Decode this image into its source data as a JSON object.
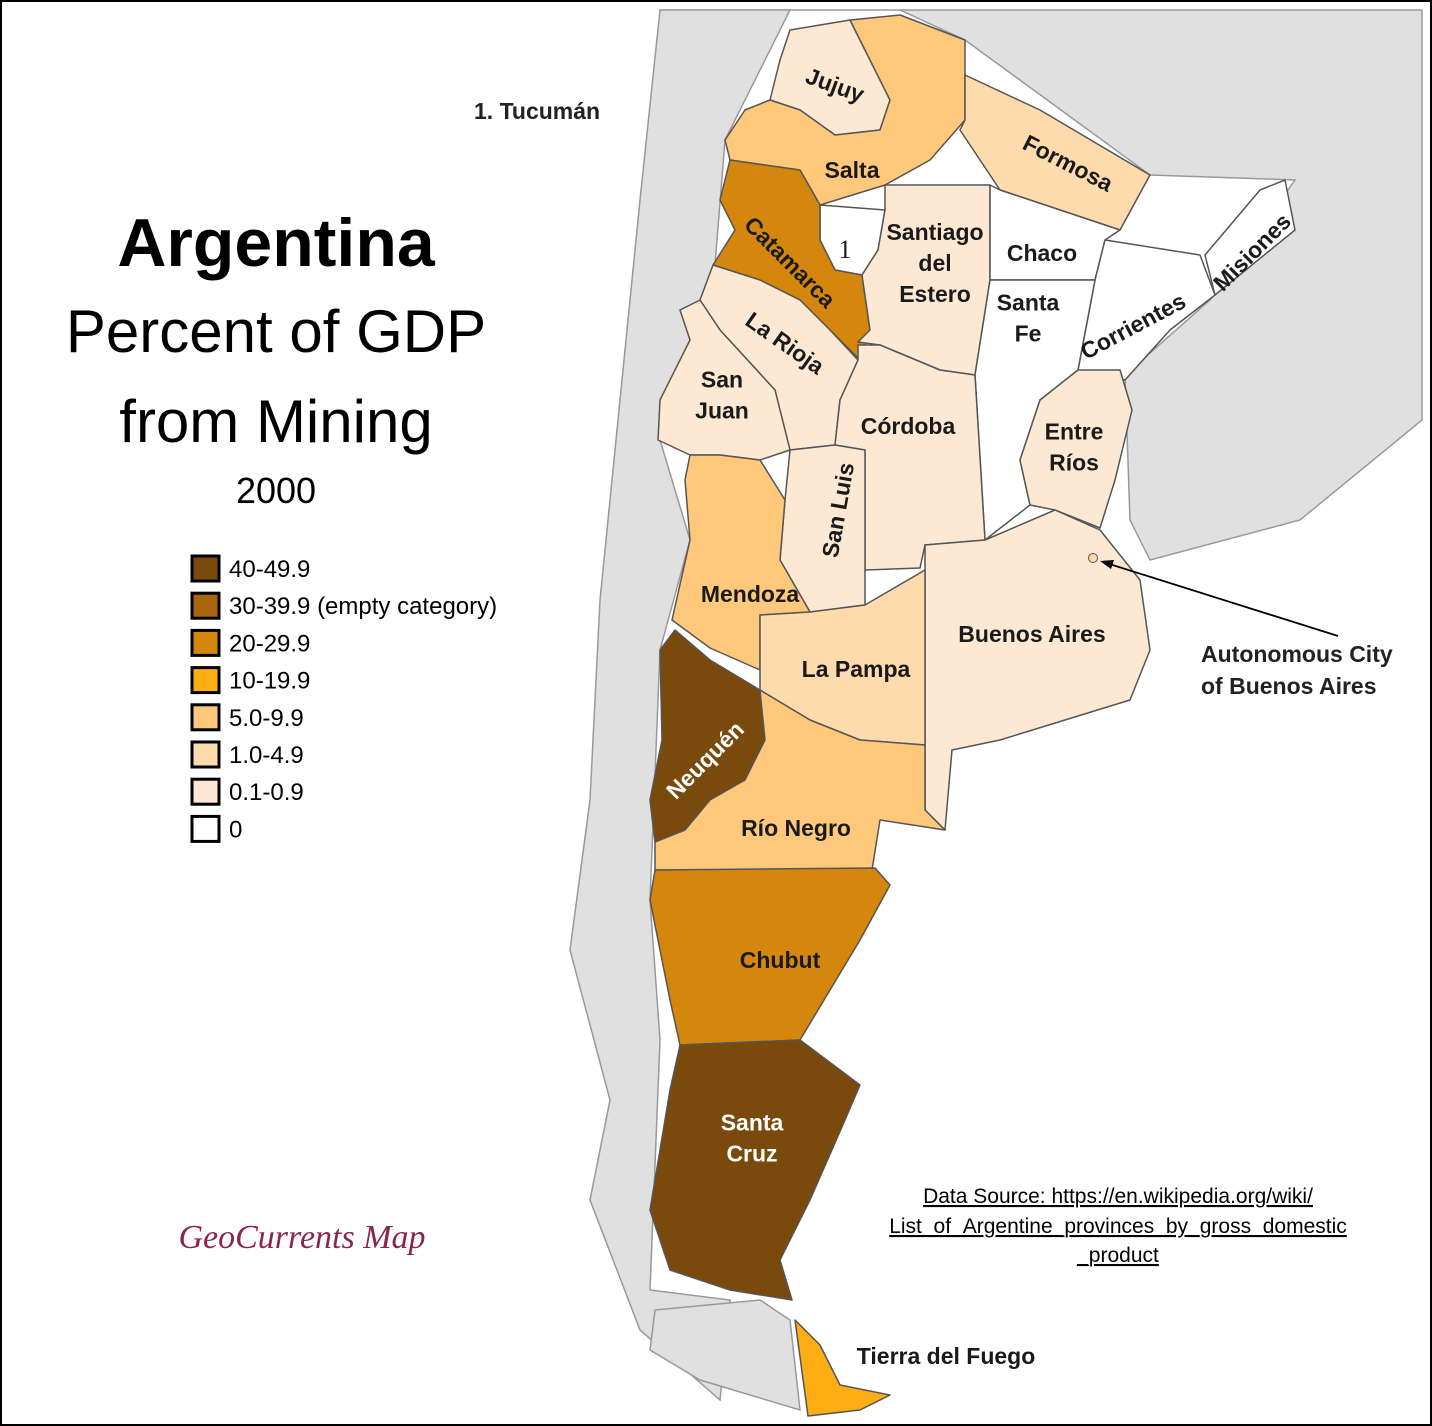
{
  "title": "Argentina",
  "subtitle": [
    "Percent of GDP",
    "from Mining"
  ],
  "year": "2000",
  "legend": [
    {
      "label": "40-49.9",
      "color": "#7a4a0c"
    },
    {
      "label": "30-39.9 (empty category)",
      "color": "#a8650e"
    },
    {
      "label": "20-29.9",
      "color": "#d4870c"
    },
    {
      "label": "10-19.9",
      "color": "#ffad14"
    },
    {
      "label": "5.0-9.9",
      "color": "#ffc87a"
    },
    {
      "label": "1.0-4.9",
      "color": "#fedbad"
    },
    {
      "label": "0.1-0.9",
      "color": "#fde9d3"
    },
    {
      "label": "0",
      "color": "#ffffff"
    }
  ],
  "footnote": "1. Tucumán",
  "provinces": [
    {
      "label": [
        "Jujuy"
      ],
      "color": "#fde9d3"
    },
    {
      "label": [
        "Salta"
      ],
      "color": "#ffc87a"
    },
    {
      "label": [
        "Formosa"
      ],
      "color": "#fedbad"
    },
    {
      "label": [
        "1"
      ],
      "color": "#ffffff"
    },
    {
      "label": [
        "Catamarca"
      ],
      "color": "#d4870c"
    },
    {
      "label": [
        "Santiago",
        "del",
        "Estero"
      ],
      "color": "#fde9d3"
    },
    {
      "label": [
        "Chaco"
      ],
      "color": "#ffffff"
    },
    {
      "label": [
        "Misiones"
      ],
      "color": "#ffffff"
    },
    {
      "label": [
        "Corrientes"
      ],
      "color": "#ffffff"
    },
    {
      "label": [
        "Santa",
        "Fe"
      ],
      "color": "#ffffff"
    },
    {
      "label": [
        "Entre",
        "Ríos"
      ],
      "color": "#fde9d3"
    },
    {
      "label": [
        "La Rioja"
      ],
      "color": "#fde9d3"
    },
    {
      "label": [
        "San",
        "Juan"
      ],
      "color": "#fde9d3"
    },
    {
      "label": [
        "Córdoba"
      ],
      "color": "#fde9d3"
    },
    {
      "label": [
        "San Luis"
      ],
      "color": "#fde9d3"
    },
    {
      "label": [
        "Mendoza"
      ],
      "color": "#ffc87a"
    },
    {
      "label": [
        "Buenos Aires"
      ],
      "color": "#fde9d3"
    },
    {
      "label": [
        "La Pampa"
      ],
      "color": "#fedbad"
    },
    {
      "label": [
        "Neuquén"
      ],
      "color": "#7a4a0c"
    },
    {
      "label": [
        "Río Negro"
      ],
      "color": "#ffc87a"
    },
    {
      "label": [
        "Chubut"
      ],
      "color": "#d4870c"
    },
    {
      "label": [
        "Santa",
        "Cruz"
      ],
      "color": "#7a4a0c"
    },
    {
      "label": [
        "Tierra del Fuego"
      ],
      "color": "#ffad14"
    }
  ],
  "annotation": [
    "Autonomous City",
    "of Buenos Aires"
  ],
  "source": [
    "Data Source: https://en.wikipedia.org/wiki/",
    "List_of_Argentine_provinces_by_gross_domestic",
    "_product"
  ],
  "credit": "GeoCurrents Map"
}
